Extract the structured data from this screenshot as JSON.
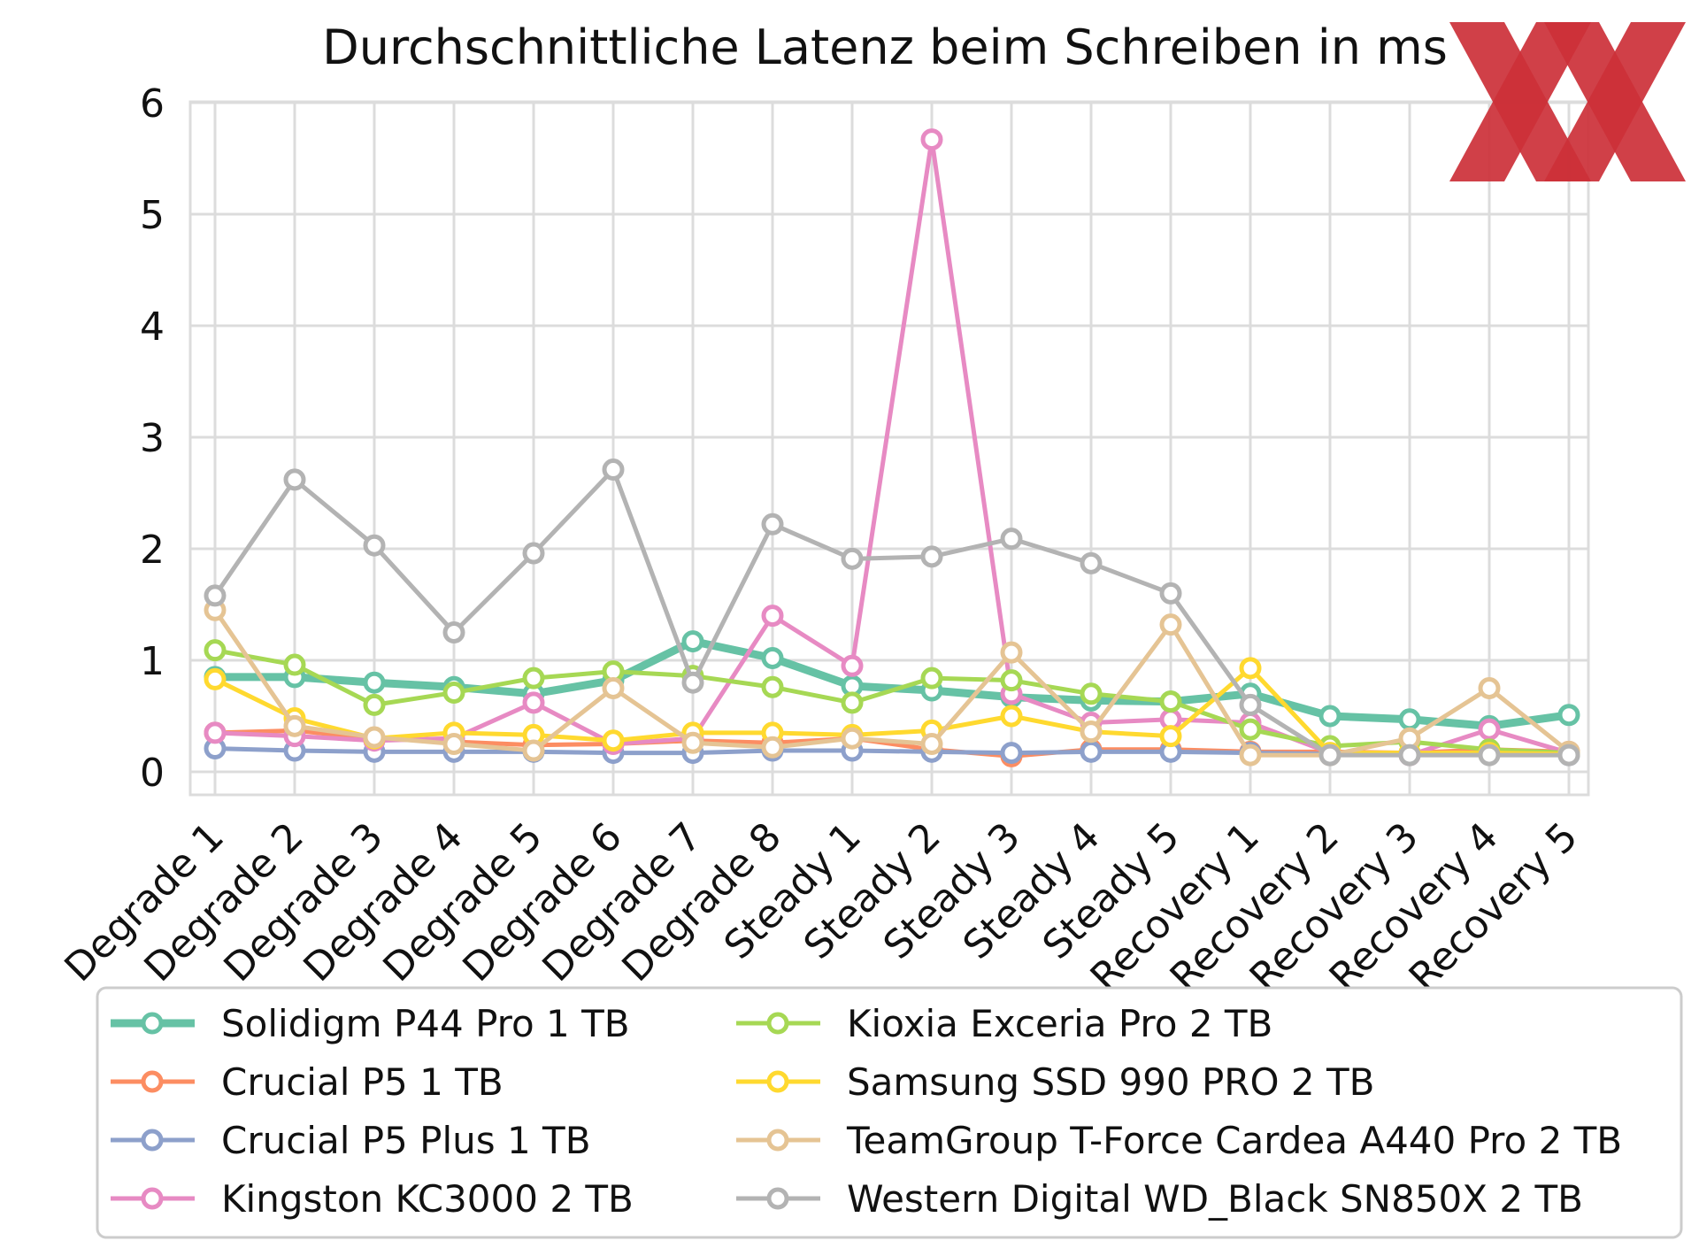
{
  "chart_data": {
    "type": "line",
    "title": "Durchschnittliche Latenz beim Schreiben in ms",
    "xlabel": "",
    "ylabel": "",
    "ylim": [
      0,
      6
    ],
    "y_ticks": [
      "0",
      "1",
      "2",
      "3",
      "4",
      "5",
      "6"
    ],
    "grid": true,
    "legend_position": "bottom",
    "categories": [
      "Degrade 1",
      "Degrade 2",
      "Degrade 3",
      "Degrade 4",
      "Degrade 5",
      "Degrade 6",
      "Degrade 7",
      "Degrade 8",
      "Steady 1",
      "Steady 2",
      "Steady 3",
      "Steady 4",
      "Steady 5",
      "Recovery 1",
      "Recovery 2",
      "Recovery 3",
      "Recovery 4",
      "Recovery 5"
    ],
    "series": [
      {
        "name": "Solidigm P44 Pro 1 TB",
        "color": "#66c2a5",
        "values": [
          0.85,
          0.85,
          0.8,
          0.76,
          0.7,
          0.82,
          1.17,
          1.02,
          0.77,
          0.73,
          0.67,
          0.64,
          0.63,
          0.7,
          0.5,
          0.47,
          0.41,
          0.51
        ]
      },
      {
        "name": "Crucial P5 1 TB",
        "color": "#fc8d62",
        "values": [
          0.35,
          0.37,
          0.3,
          0.27,
          0.24,
          0.25,
          0.28,
          0.26,
          0.3,
          0.2,
          0.14,
          0.2,
          0.2,
          0.18,
          0.18,
          0.17,
          0.2,
          0.18
        ]
      },
      {
        "name": "Crucial P5 Plus 1 TB",
        "color": "#8da0cb",
        "values": [
          0.21,
          0.19,
          0.18,
          0.18,
          0.18,
          0.17,
          0.17,
          0.19,
          0.19,
          0.18,
          0.17,
          0.18,
          0.18,
          0.17,
          0.16,
          0.16,
          0.16,
          0.15
        ]
      },
      {
        "name": "Kingston KC3000 2 TB",
        "color": "#e78ac3",
        "values": [
          0.35,
          0.32,
          0.28,
          0.3,
          0.62,
          0.25,
          0.3,
          1.4,
          0.95,
          5.67,
          0.7,
          0.44,
          0.47,
          0.44,
          0.17,
          0.15,
          0.38,
          0.17
        ]
      },
      {
        "name": "Kioxia Exceria Pro 2 TB",
        "color": "#a6d854",
        "values": [
          1.09,
          0.96,
          0.6,
          0.71,
          0.84,
          0.9,
          0.86,
          0.76,
          0.62,
          0.84,
          0.82,
          0.7,
          0.63,
          0.38,
          0.23,
          0.27,
          0.2,
          0.17
        ]
      },
      {
        "name": "Samsung SSD 990 PRO 2 TB",
        "color": "#ffd92f",
        "values": [
          0.83,
          0.48,
          0.3,
          0.35,
          0.33,
          0.28,
          0.35,
          0.35,
          0.33,
          0.37,
          0.5,
          0.36,
          0.32,
          0.93,
          0.17,
          0.17,
          0.17,
          0.16
        ]
      },
      {
        "name": "TeamGroup T-Force Cardea A440 Pro 2 TB",
        "color": "#e5c494",
        "values": [
          1.45,
          0.41,
          0.31,
          0.25,
          0.19,
          0.75,
          0.26,
          0.22,
          0.3,
          0.25,
          1.07,
          0.36,
          1.32,
          0.15,
          0.15,
          0.3,
          0.75,
          0.18
        ]
      },
      {
        "name": "Western Digital WD_Black SN850X 2 TB",
        "color": "#b3b3b3",
        "values": [
          1.58,
          2.62,
          2.03,
          1.25,
          1.96,
          2.71,
          0.8,
          2.22,
          1.91,
          1.93,
          2.09,
          1.87,
          1.6,
          0.6,
          0.15,
          0.15,
          0.15,
          0.15
        ]
      }
    ]
  },
  "logo": {
    "name": "xx-logo",
    "color": "#cc3038"
  }
}
